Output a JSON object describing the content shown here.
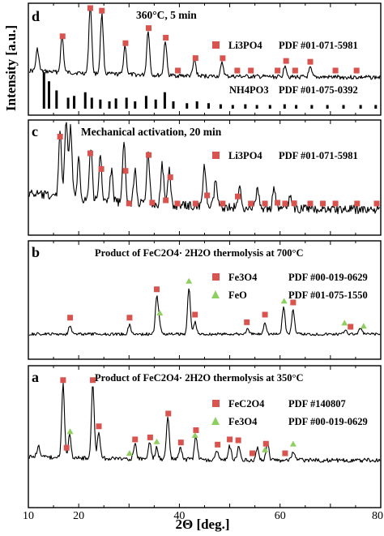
{
  "figure": {
    "y_axis_label": "Intensity [a.u.]",
    "x_axis_label": "2Θ [deg.]",
    "x_ticks": [
      "10",
      "20",
      "40",
      "60",
      "80"
    ],
    "x_tick_values": [
      10,
      20,
      40,
      60,
      80
    ]
  },
  "colors": {
    "square_marker": "#d9534f",
    "triangle_marker": "#8fcf5f",
    "trace": "#000000"
  },
  "chart_data": [
    {
      "type": "line",
      "panel": "d",
      "title": "360°C, 5 min",
      "xlim": [
        10,
        80
      ],
      "legend": [
        {
          "marker": "square",
          "label": "Li3PO4",
          "pdf": "PDF #01-071-5981"
        },
        {
          "marker": "bar",
          "label": "NH4PO3",
          "pdf": "PDF #01-075-0392"
        }
      ],
      "peaks": [
        {
          "x": 11.8,
          "h": 0.3
        },
        {
          "x": 16.7,
          "h": 0.5
        },
        {
          "x": 22.3,
          "h": 0.95
        },
        {
          "x": 24.6,
          "h": 0.82
        },
        {
          "x": 29.2,
          "h": 0.4
        },
        {
          "x": 33.8,
          "h": 0.62
        },
        {
          "x": 37.2,
          "h": 0.48
        },
        {
          "x": 43.0,
          "h": 0.22
        },
        {
          "x": 48.5,
          "h": 0.18
        },
        {
          "x": 61.0,
          "h": 0.17
        },
        {
          "x": 66.0,
          "h": 0.12
        }
      ],
      "series_markers": [
        {
          "series": "Li3PO4",
          "marker": "square",
          "x": [
            16.8,
            22.3,
            24.6,
            29.3,
            33.9,
            37.3,
            39.7,
            43.2,
            48.6,
            51.5,
            54.2,
            59.5,
            61.2,
            63.0,
            66.0,
            71.0,
            75.2
          ]
        },
        {
          "series": "NH4PO3",
          "marker": "bar",
          "x": [
            13.1,
            14.1,
            15.6,
            17.9,
            19.1,
            21.3,
            22.6,
            24.3,
            26.1,
            27.4,
            29.5,
            31.2,
            33.4,
            35.3,
            37.1,
            38.8,
            41.5,
            43.5,
            45.8,
            48.2,
            50.6,
            53.1,
            55.4,
            58.0,
            60.9,
            63.2,
            66.3,
            69.4,
            72.6,
            76.0,
            79.0
          ],
          "intensity": [
            1.0,
            0.75,
            0.5,
            0.3,
            0.35,
            0.45,
            0.3,
            0.25,
            0.2,
            0.28,
            0.3,
            0.2,
            0.35,
            0.25,
            0.45,
            0.2,
            0.15,
            0.2,
            0.15,
            0.12,
            0.1,
            0.12,
            0.1,
            0.1,
            0.12,
            0.1,
            0.1,
            0.1,
            0.1,
            0.1,
            0.1
          ]
        }
      ]
    },
    {
      "type": "line",
      "panel": "c",
      "title": "Mechanical activation, 20 min",
      "xlim": [
        10,
        80
      ],
      "legend": [
        {
          "marker": "square",
          "label": "Li3PO4",
          "pdf": "PDF #01-071-5981"
        }
      ],
      "peaks": [
        {
          "x": 16.3,
          "h": 0.75
        },
        {
          "x": 17.5,
          "h": 0.88
        },
        {
          "x": 18.4,
          "h": 0.8
        },
        {
          "x": 20.0,
          "h": 0.45
        },
        {
          "x": 22.4,
          "h": 0.6
        },
        {
          "x": 24.3,
          "h": 0.5
        },
        {
          "x": 26.5,
          "h": 0.35
        },
        {
          "x": 29.0,
          "h": 0.65
        },
        {
          "x": 31.2,
          "h": 0.4
        },
        {
          "x": 33.8,
          "h": 0.58
        },
        {
          "x": 36.6,
          "h": 0.45
        },
        {
          "x": 38.0,
          "h": 0.38
        },
        {
          "x": 45.0,
          "h": 0.45
        },
        {
          "x": 47.2,
          "h": 0.3
        },
        {
          "x": 52.0,
          "h": 0.22
        },
        {
          "x": 55.5,
          "h": 0.22
        },
        {
          "x": 58.8,
          "h": 0.2
        },
        {
          "x": 62.0,
          "h": 0.15
        }
      ],
      "series_markers": [
        {
          "series": "Li3PO4",
          "marker": "square",
          "x": [
            16.3,
            22.3,
            24.5,
            29.3,
            30.0,
            33.9,
            34.6,
            37.3,
            38.2,
            39.6,
            43.2,
            45.5,
            48.6,
            51.6,
            54.2,
            57.0,
            59.5,
            61.0,
            62.8,
            66.0,
            68.5,
            71.0,
            75.3,
            79.2
          ]
        }
      ]
    },
    {
      "type": "line",
      "panel": "b",
      "title": "Product of FeC2O4· 2H2O thermolysis at 700°C",
      "xlim": [
        10,
        80
      ],
      "legend": [
        {
          "marker": "square",
          "label": "Fe3O4",
          "pdf": "PDF #00-019-0629"
        },
        {
          "marker": "triangle",
          "label": "FeO",
          "pdf": "PDF #01-075-1550"
        }
      ],
      "peaks": [
        {
          "x": 18.3,
          "h": 0.15
        },
        {
          "x": 30.1,
          "h": 0.15
        },
        {
          "x": 35.5,
          "h": 0.58
        },
        {
          "x": 36.0,
          "h": 0.18
        },
        {
          "x": 41.9,
          "h": 0.75
        },
        {
          "x": 43.1,
          "h": 0.2
        },
        {
          "x": 53.5,
          "h": 0.08
        },
        {
          "x": 57.0,
          "h": 0.2
        },
        {
          "x": 60.7,
          "h": 0.45
        },
        {
          "x": 62.6,
          "h": 0.4
        },
        {
          "x": 73.0,
          "h": 0.08
        },
        {
          "x": 76.0,
          "h": 0.1
        }
      ],
      "series_markers": [
        {
          "series": "Fe3O4",
          "marker": "square",
          "x": [
            18.3,
            30.1,
            35.5,
            43.1,
            53.4,
            57.0,
            62.6,
            74.0
          ]
        },
        {
          "series": "FeO",
          "marker": "triangle",
          "x": [
            36.1,
            41.9,
            60.8,
            72.8,
            76.6
          ]
        }
      ]
    },
    {
      "type": "line",
      "panel": "a",
      "title": "Product of FeC2O4· 2H2O thermolysis at 350°C",
      "xlim": [
        10,
        80
      ],
      "legend": [
        {
          "marker": "square",
          "label": "FeC2O4",
          "pdf": "PDF #140807"
        },
        {
          "marker": "triangle",
          "label": "Fe3O4",
          "pdf": "PDF #00-019-0629"
        }
      ],
      "peaks": [
        {
          "x": 12.0,
          "h": 0.15
        },
        {
          "x": 16.9,
          "h": 0.95
        },
        {
          "x": 18.2,
          "h": 0.3
        },
        {
          "x": 22.8,
          "h": 0.95
        },
        {
          "x": 24.0,
          "h": 0.35
        },
        {
          "x": 31.2,
          "h": 0.18
        },
        {
          "x": 34.1,
          "h": 0.22
        },
        {
          "x": 35.5,
          "h": 0.15
        },
        {
          "x": 37.7,
          "h": 0.55
        },
        {
          "x": 40.2,
          "h": 0.15
        },
        {
          "x": 43.3,
          "h": 0.3
        },
        {
          "x": 47.5,
          "h": 0.12
        },
        {
          "x": 50.0,
          "h": 0.18
        },
        {
          "x": 51.8,
          "h": 0.18
        },
        {
          "x": 55.5,
          "h": 0.15
        },
        {
          "x": 57.5,
          "h": 0.22
        },
        {
          "x": 62.6,
          "h": 0.12
        }
      ],
      "series_markers": [
        {
          "series": "FeC2O4",
          "marker": "square",
          "x": [
            16.9,
            17.6,
            22.8,
            24.0,
            31.2,
            34.2,
            37.8,
            40.3,
            43.3,
            47.6,
            50.0,
            51.7,
            54.5,
            57.2,
            61.0
          ]
        },
        {
          "series": "Fe3O4",
          "marker": "triangle",
          "x": [
            18.3,
            30.1,
            35.5,
            43.1,
            57.0,
            62.6
          ]
        }
      ]
    }
  ]
}
